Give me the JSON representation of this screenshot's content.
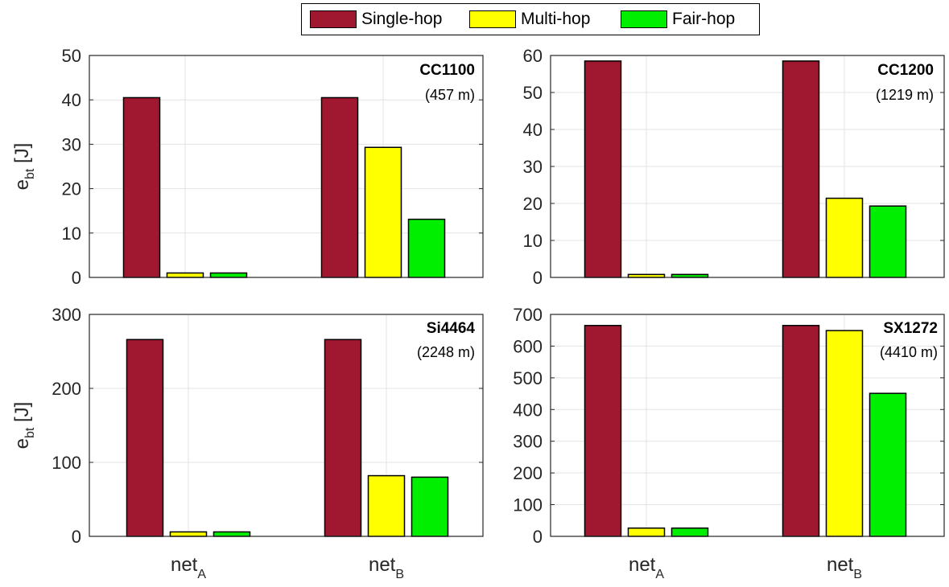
{
  "legend": {
    "items": [
      {
        "label": "Single-hop",
        "color": "#a01830"
      },
      {
        "label": "Multi-hop",
        "color": "#ffff00"
      },
      {
        "label": "Fair-hop",
        "color": "#00ee00"
      }
    ]
  },
  "chart_data": [
    {
      "type": "bar",
      "title": "CC1100",
      "subtitle": "(457 m)",
      "ylabel": "e",
      "ylabel_sub": "bt",
      "ylabel_unit": " [J]",
      "ylim": [
        0,
        50
      ],
      "yticks": [
        0,
        10,
        20,
        30,
        40,
        50
      ],
      "grid": true,
      "categories": [
        {
          "main": "net",
          "sub": "A"
        },
        {
          "main": "net",
          "sub": "B"
        }
      ],
      "series": [
        {
          "name": "Single-hop",
          "values": [
            40.5,
            40.5
          ]
        },
        {
          "name": "Multi-hop",
          "values": [
            1.0,
            29.3
          ]
        },
        {
          "name": "Fair-hop",
          "values": [
            1.0,
            13.1
          ]
        }
      ]
    },
    {
      "type": "bar",
      "title": "CC1200",
      "subtitle": "(1219 m)",
      "ylabel": "",
      "ylabel_sub": "",
      "ylabel_unit": "",
      "ylim": [
        0,
        60
      ],
      "yticks": [
        0,
        10,
        20,
        30,
        40,
        50,
        60
      ],
      "grid": true,
      "categories": [
        {
          "main": "net",
          "sub": "A"
        },
        {
          "main": "net",
          "sub": "B"
        }
      ],
      "series": [
        {
          "name": "Single-hop",
          "values": [
            58.5,
            58.5
          ]
        },
        {
          "name": "Multi-hop",
          "values": [
            0.8,
            21.4
          ]
        },
        {
          "name": "Fair-hop",
          "values": [
            0.8,
            19.3
          ]
        }
      ]
    },
    {
      "type": "bar",
      "title": "Si4464",
      "subtitle": "(2248 m)",
      "ylabel": "e",
      "ylabel_sub": "bt",
      "ylabel_unit": " [J]",
      "ylim": [
        0,
        300
      ],
      "yticks": [
        0,
        100,
        200,
        300
      ],
      "grid": true,
      "categories": [
        {
          "main": "net",
          "sub": "A"
        },
        {
          "main": "net",
          "sub": "B"
        }
      ],
      "series": [
        {
          "name": "Single-hop",
          "values": [
            266,
            266
          ]
        },
        {
          "name": "Multi-hop",
          "values": [
            6,
            82
          ]
        },
        {
          "name": "Fair-hop",
          "values": [
            6,
            80
          ]
        }
      ]
    },
    {
      "type": "bar",
      "title": "SX1272",
      "subtitle": "(4410 m)",
      "ylabel": "",
      "ylabel_sub": "",
      "ylabel_unit": "",
      "ylim": [
        0,
        700
      ],
      "yticks": [
        0,
        100,
        200,
        300,
        400,
        500,
        600,
        700
      ],
      "grid": true,
      "categories": [
        {
          "main": "net",
          "sub": "A"
        },
        {
          "main": "net",
          "sub": "B"
        }
      ],
      "series": [
        {
          "name": "Single-hop",
          "values": [
            665,
            665
          ]
        },
        {
          "name": "Multi-hop",
          "values": [
            26,
            649
          ]
        },
        {
          "name": "Fair-hop",
          "values": [
            26,
            451
          ]
        }
      ]
    }
  ]
}
